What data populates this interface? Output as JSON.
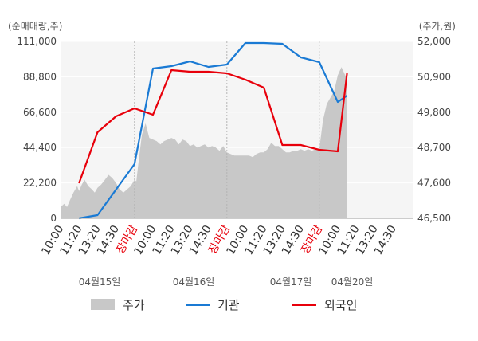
{
  "chart_data": {
    "type": "line",
    "left_unit": "(순매매량,주)",
    "right_unit": "(주가,원)",
    "y_left": {
      "ticks": [
        "111,000",
        "88,800",
        "66,600",
        "44,400",
        "22,200",
        "0"
      ],
      "range": [
        0,
        111000
      ]
    },
    "y_right": {
      "ticks": [
        "52,000",
        "50,900",
        "49,800",
        "48,700",
        "47,600",
        "46,500"
      ],
      "range": [
        46500,
        52000
      ]
    },
    "x_ticks": [
      {
        "label": "10:00",
        "red": false
      },
      {
        "label": "11:20",
        "red": false
      },
      {
        "label": "13:20",
        "red": false
      },
      {
        "label": "14:30",
        "red": false
      },
      {
        "label": "장마감",
        "red": true
      },
      {
        "label": "10:00",
        "red": false
      },
      {
        "label": "11:20",
        "red": false
      },
      {
        "label": "13:20",
        "red": false
      },
      {
        "label": "14:30",
        "red": false
      },
      {
        "label": "장마감",
        "red": true
      },
      {
        "label": "10:00",
        "red": false
      },
      {
        "label": "11:20",
        "red": false
      },
      {
        "label": "13:20",
        "red": false
      },
      {
        "label": "14:30",
        "red": false
      },
      {
        "label": "장마감",
        "red": true
      },
      {
        "label": "10:00",
        "red": false
      },
      {
        "label": "11:20",
        "red": false
      },
      {
        "label": "13:20",
        "red": false
      },
      {
        "label": "14:30",
        "red": false
      }
    ],
    "dates": [
      "04월15일",
      "04월16일",
      "04월17일",
      "04월20일"
    ],
    "legend": [
      {
        "name": "주가",
        "color": "#c8c8c8",
        "kind": "area"
      },
      {
        "name": "기관",
        "color": "#1a7ad4",
        "kind": "line"
      },
      {
        "name": "외국인",
        "color": "#e8000b",
        "kind": "line"
      }
    ],
    "price_series": {
      "name": "주가",
      "axis": "right",
      "x": [
        0,
        0.1,
        0.2,
        0.35,
        0.5,
        0.7,
        0.9,
        1.0,
        1.15,
        1.3,
        1.5,
        1.7,
        1.85,
        2.0,
        2.2,
        2.4,
        2.6,
        2.8,
        3.0,
        3.2,
        3.4,
        3.6,
        3.8,
        3.9,
        4.0,
        4.1,
        4.25,
        4.4,
        4.6,
        4.8,
        5.0,
        5.2,
        5.4,
        5.6,
        5.8,
        6.0,
        6.2,
        6.4,
        6.6,
        6.8,
        7.0,
        7.2,
        7.4,
        7.6,
        7.8,
        8.0,
        8.2,
        8.4,
        8.6,
        8.8,
        9.0,
        9.2,
        9.4,
        9.6,
        9.8,
        10.0,
        10.2,
        10.4,
        10.6,
        10.8,
        11.0,
        11.2,
        11.4,
        11.6,
        11.8,
        12.0,
        12.2,
        12.4,
        12.6,
        12.8,
        13.0,
        13.2,
        13.4,
        13.6,
        13.8,
        14.0,
        14.2,
        14.4,
        14.6,
        14.8,
        15.0,
        15.2,
        15.4,
        15.5
      ],
      "values": [
        46850,
        46900,
        46950,
        46850,
        47050,
        47300,
        47500,
        47350,
        47550,
        47700,
        47500,
        47400,
        47300,
        47450,
        47550,
        47700,
        47850,
        47750,
        47600,
        47400,
        47300,
        47400,
        47500,
        47600,
        47700,
        47650,
        48400,
        49100,
        49450,
        49000,
        48950,
        48900,
        48800,
        48900,
        48950,
        49000,
        48950,
        48800,
        48950,
        48900,
        48750,
        48800,
        48700,
        48750,
        48800,
        48700,
        48750,
        48700,
        48600,
        48750,
        48550,
        48500,
        48450,
        48450,
        48450,
        48450,
        48450,
        48400,
        48500,
        48550,
        48550,
        48650,
        48850,
        48750,
        48750,
        48650,
        48550,
        48550,
        48600,
        48600,
        48650,
        48600,
        48650,
        48600,
        48650,
        48650,
        49550,
        50050,
        50250,
        50450,
        50950,
        51200,
        50950,
        50850
      ]
    },
    "institution_series": {
      "name": "기관",
      "axis": "left",
      "x": [
        1.0,
        2.0,
        3.0,
        4.0,
        5.0,
        6.0,
        7.0,
        8.0,
        9.0,
        10.0,
        11.0,
        12.0,
        13.0,
        14.0,
        15.0,
        15.5
      ],
      "values": [
        0,
        2000,
        18000,
        34000,
        94000,
        95500,
        98500,
        95000,
        96500,
        110000,
        110000,
        109500,
        101000,
        98000,
        73000,
        77000
      ]
    },
    "foreign_series": {
      "name": "외국인",
      "axis": "left",
      "x": [
        1.0,
        2.0,
        3.0,
        4.0,
        5.0,
        6.0,
        7.0,
        8.0,
        9.0,
        10.0,
        11.0,
        12.0,
        13.0,
        14.0,
        15.0,
        15.5
      ],
      "values": [
        22000,
        54000,
        64000,
        69000,
        65000,
        93000,
        92000,
        92000,
        91000,
        87000,
        82000,
        46000,
        46000,
        43000,
        42000,
        91000
      ]
    }
  }
}
